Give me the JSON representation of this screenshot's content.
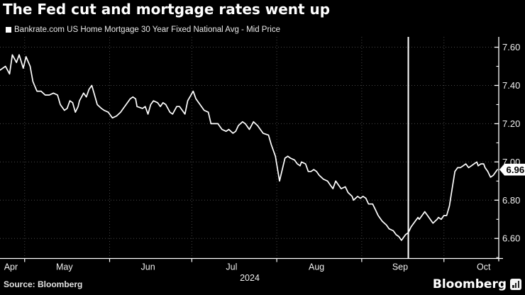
{
  "title": "The Fed cut and mortgage rates went up",
  "legend": {
    "marker": "square",
    "label": "Bankrate.com US Home Mortgage 30 Year Fixed National Avg - Mid Price"
  },
  "footer": {
    "source": "Source: Bloomberg",
    "brand": "Bloomberg",
    "brand_icon": "bloomberg-chart-app-icon"
  },
  "colors": {
    "background": "#000000",
    "series_line": "#ffffff",
    "axis": "#ffffff",
    "grid_dotted": "#474747",
    "tick_label": "#f0f0f0",
    "badge_bg": "#ffffff",
    "badge_text": "#000000",
    "event_line": "#ffffff"
  },
  "chart_data": {
    "type": "line",
    "series_name": "Bankrate.com US Home Mortgage 30 Year Fixed National Avg - Mid Price",
    "x_axis": {
      "unit": "date",
      "year_label": "2024",
      "start_date": "2024-04-22",
      "end_date": "2024-10-21",
      "days_total": 182,
      "month_labels": [
        "Apr",
        "May",
        "Jun",
        "Jul",
        "Aug",
        "Sep",
        "Oct"
      ],
      "month_label_days": [
        4,
        23.5,
        54,
        84.5,
        115.5,
        146,
        176.5
      ],
      "month_start_days": [
        9,
        40,
        70,
        101,
        132,
        162
      ]
    },
    "y_axis": {
      "side": "right",
      "range": [
        6.5,
        7.65
      ],
      "ticks": [
        7.6,
        7.4,
        7.2,
        7.0,
        6.8,
        6.6
      ],
      "tick_labels": [
        "7.60",
        "7.40",
        "7.20",
        "7.00",
        "6.80",
        "6.60"
      ],
      "minor_ticks": [
        7.5,
        7.3,
        7.1,
        6.9,
        6.7,
        6.5
      ],
      "grid": "dotted horizontal at major ticks"
    },
    "event_line": {
      "date": "2024-09-18",
      "day_index": 149,
      "style": "solid vertical white"
    },
    "last_value": 6.96,
    "last_value_label": "6.96",
    "points": [
      [
        0,
        7.48
      ],
      [
        2,
        7.5
      ],
      [
        3.5,
        7.46
      ],
      [
        4.5,
        7.56
      ],
      [
        6,
        7.52
      ],
      [
        7,
        7.56
      ],
      [
        8.5,
        7.49
      ],
      [
        9.5,
        7.55
      ],
      [
        11,
        7.5
      ],
      [
        12,
        7.42
      ],
      [
        13.5,
        7.37
      ],
      [
        15,
        7.37
      ],
      [
        16.5,
        7.35
      ],
      [
        18,
        7.35
      ],
      [
        19.5,
        7.36
      ],
      [
        21,
        7.35
      ],
      [
        22,
        7.3
      ],
      [
        23.5,
        7.27
      ],
      [
        24.5,
        7.28
      ],
      [
        25.5,
        7.32
      ],
      [
        26.5,
        7.31
      ],
      [
        27.5,
        7.26
      ],
      [
        28.5,
        7.29
      ],
      [
        29,
        7.32
      ],
      [
        30.5,
        7.36
      ],
      [
        31.5,
        7.34
      ],
      [
        32.5,
        7.38
      ],
      [
        33.5,
        7.4
      ],
      [
        34.5,
        7.35
      ],
      [
        35.5,
        7.3
      ],
      [
        37,
        7.28
      ],
      [
        38,
        7.27
      ],
      [
        39.5,
        7.26
      ],
      [
        41,
        7.23
      ],
      [
        42.5,
        7.24
      ],
      [
        44,
        7.26
      ],
      [
        45,
        7.28
      ],
      [
        46,
        7.3
      ],
      [
        47.5,
        7.33
      ],
      [
        48.5,
        7.34
      ],
      [
        49.5,
        7.33
      ],
      [
        50,
        7.29
      ],
      [
        52,
        7.28
      ],
      [
        53,
        7.29
      ],
      [
        54,
        7.25
      ],
      [
        55,
        7.3
      ],
      [
        56,
        7.32
      ],
      [
        57.5,
        7.31
      ],
      [
        58.5,
        7.29
      ],
      [
        59.5,
        7.31
      ],
      [
        60.5,
        7.3
      ],
      [
        62,
        7.26
      ],
      [
        63,
        7.25
      ],
      [
        64.5,
        7.29
      ],
      [
        65.5,
        7.29
      ],
      [
        67,
        7.26
      ],
      [
        67.5,
        7.25
      ],
      [
        68.5,
        7.32
      ],
      [
        70.5,
        7.37
      ],
      [
        71.5,
        7.33
      ],
      [
        73,
        7.3
      ],
      [
        74.5,
        7.27
      ],
      [
        76,
        7.26
      ],
      [
        77,
        7.2
      ],
      [
        78.5,
        7.2
      ],
      [
        79.5,
        7.2
      ],
      [
        81,
        7.17
      ],
      [
        82.5,
        7.16
      ],
      [
        83.5,
        7.17
      ],
      [
        85,
        7.15
      ],
      [
        86,
        7.16
      ],
      [
        87,
        7.19
      ],
      [
        88.5,
        7.21
      ],
      [
        89.5,
        7.2
      ],
      [
        91,
        7.17
      ],
      [
        92.5,
        7.21
      ],
      [
        94,
        7.19
      ],
      [
        96,
        7.15
      ],
      [
        98,
        7.14
      ],
      [
        99,
        7.09
      ],
      [
        100.5,
        7.03
      ],
      [
        102,
        6.9
      ],
      [
        104,
        7.02
      ],
      [
        105,
        7.03
      ],
      [
        106,
        7.02
      ],
      [
        107.5,
        7.01
      ],
      [
        108.5,
        6.99
      ],
      [
        109.5,
        6.98
      ],
      [
        110,
        7.0
      ],
      [
        111.5,
        6.99
      ],
      [
        112.5,
        6.95
      ],
      [
        113.5,
        6.95
      ],
      [
        114.5,
        6.96
      ],
      [
        115.5,
        6.95
      ],
      [
        116.5,
        6.93
      ],
      [
        118,
        6.91
      ],
      [
        119.5,
        6.9
      ],
      [
        120.5,
        6.88
      ],
      [
        121.5,
        6.86
      ],
      [
        122.5,
        6.9
      ],
      [
        123.5,
        6.88
      ],
      [
        124.5,
        6.86
      ],
      [
        126,
        6.87
      ],
      [
        127,
        6.84
      ],
      [
        128.5,
        6.82
      ],
      [
        129,
        6.8
      ],
      [
        130.5,
        6.82
      ],
      [
        131.5,
        6.81
      ],
      [
        132.5,
        6.82
      ],
      [
        133.5,
        6.81
      ],
      [
        134.5,
        6.78
      ],
      [
        136,
        6.78
      ],
      [
        137,
        6.75
      ],
      [
        138,
        6.72
      ],
      [
        139.5,
        6.69
      ],
      [
        141,
        6.67
      ],
      [
        142,
        6.65
      ],
      [
        143.5,
        6.64
      ],
      [
        144.5,
        6.62
      ],
      [
        145.5,
        6.61
      ],
      [
        146.5,
        6.59
      ],
      [
        148,
        6.62
      ],
      [
        149,
        6.63
      ],
      [
        150,
        6.66
      ],
      [
        151.5,
        6.69
      ],
      [
        152.5,
        6.71
      ],
      [
        153,
        6.7
      ],
      [
        154.5,
        6.73
      ],
      [
        155,
        6.74
      ],
      [
        156,
        6.72
      ],
      [
        157,
        6.7
      ],
      [
        158,
        6.68
      ],
      [
        159.5,
        6.7
      ],
      [
        160,
        6.71
      ],
      [
        161,
        6.7
      ],
      [
        162,
        6.72
      ],
      [
        163,
        6.72
      ],
      [
        164,
        6.77
      ],
      [
        165,
        6.86
      ],
      [
        166,
        6.95
      ],
      [
        167,
        6.97
      ],
      [
        168,
        6.97
      ],
      [
        169,
        6.98
      ],
      [
        170,
        6.99
      ],
      [
        171,
        6.97
      ],
      [
        172,
        6.98
      ],
      [
        173,
        6.99
      ],
      [
        174,
        7.0
      ],
      [
        174.5,
        6.98
      ],
      [
        175.5,
        6.99
      ],
      [
        176.5,
        6.99
      ],
      [
        177,
        6.97
      ],
      [
        178,
        6.95
      ],
      [
        179,
        6.92
      ],
      [
        180,
        6.93
      ],
      [
        180.5,
        6.94
      ],
      [
        181.5,
        6.96
      ]
    ]
  }
}
